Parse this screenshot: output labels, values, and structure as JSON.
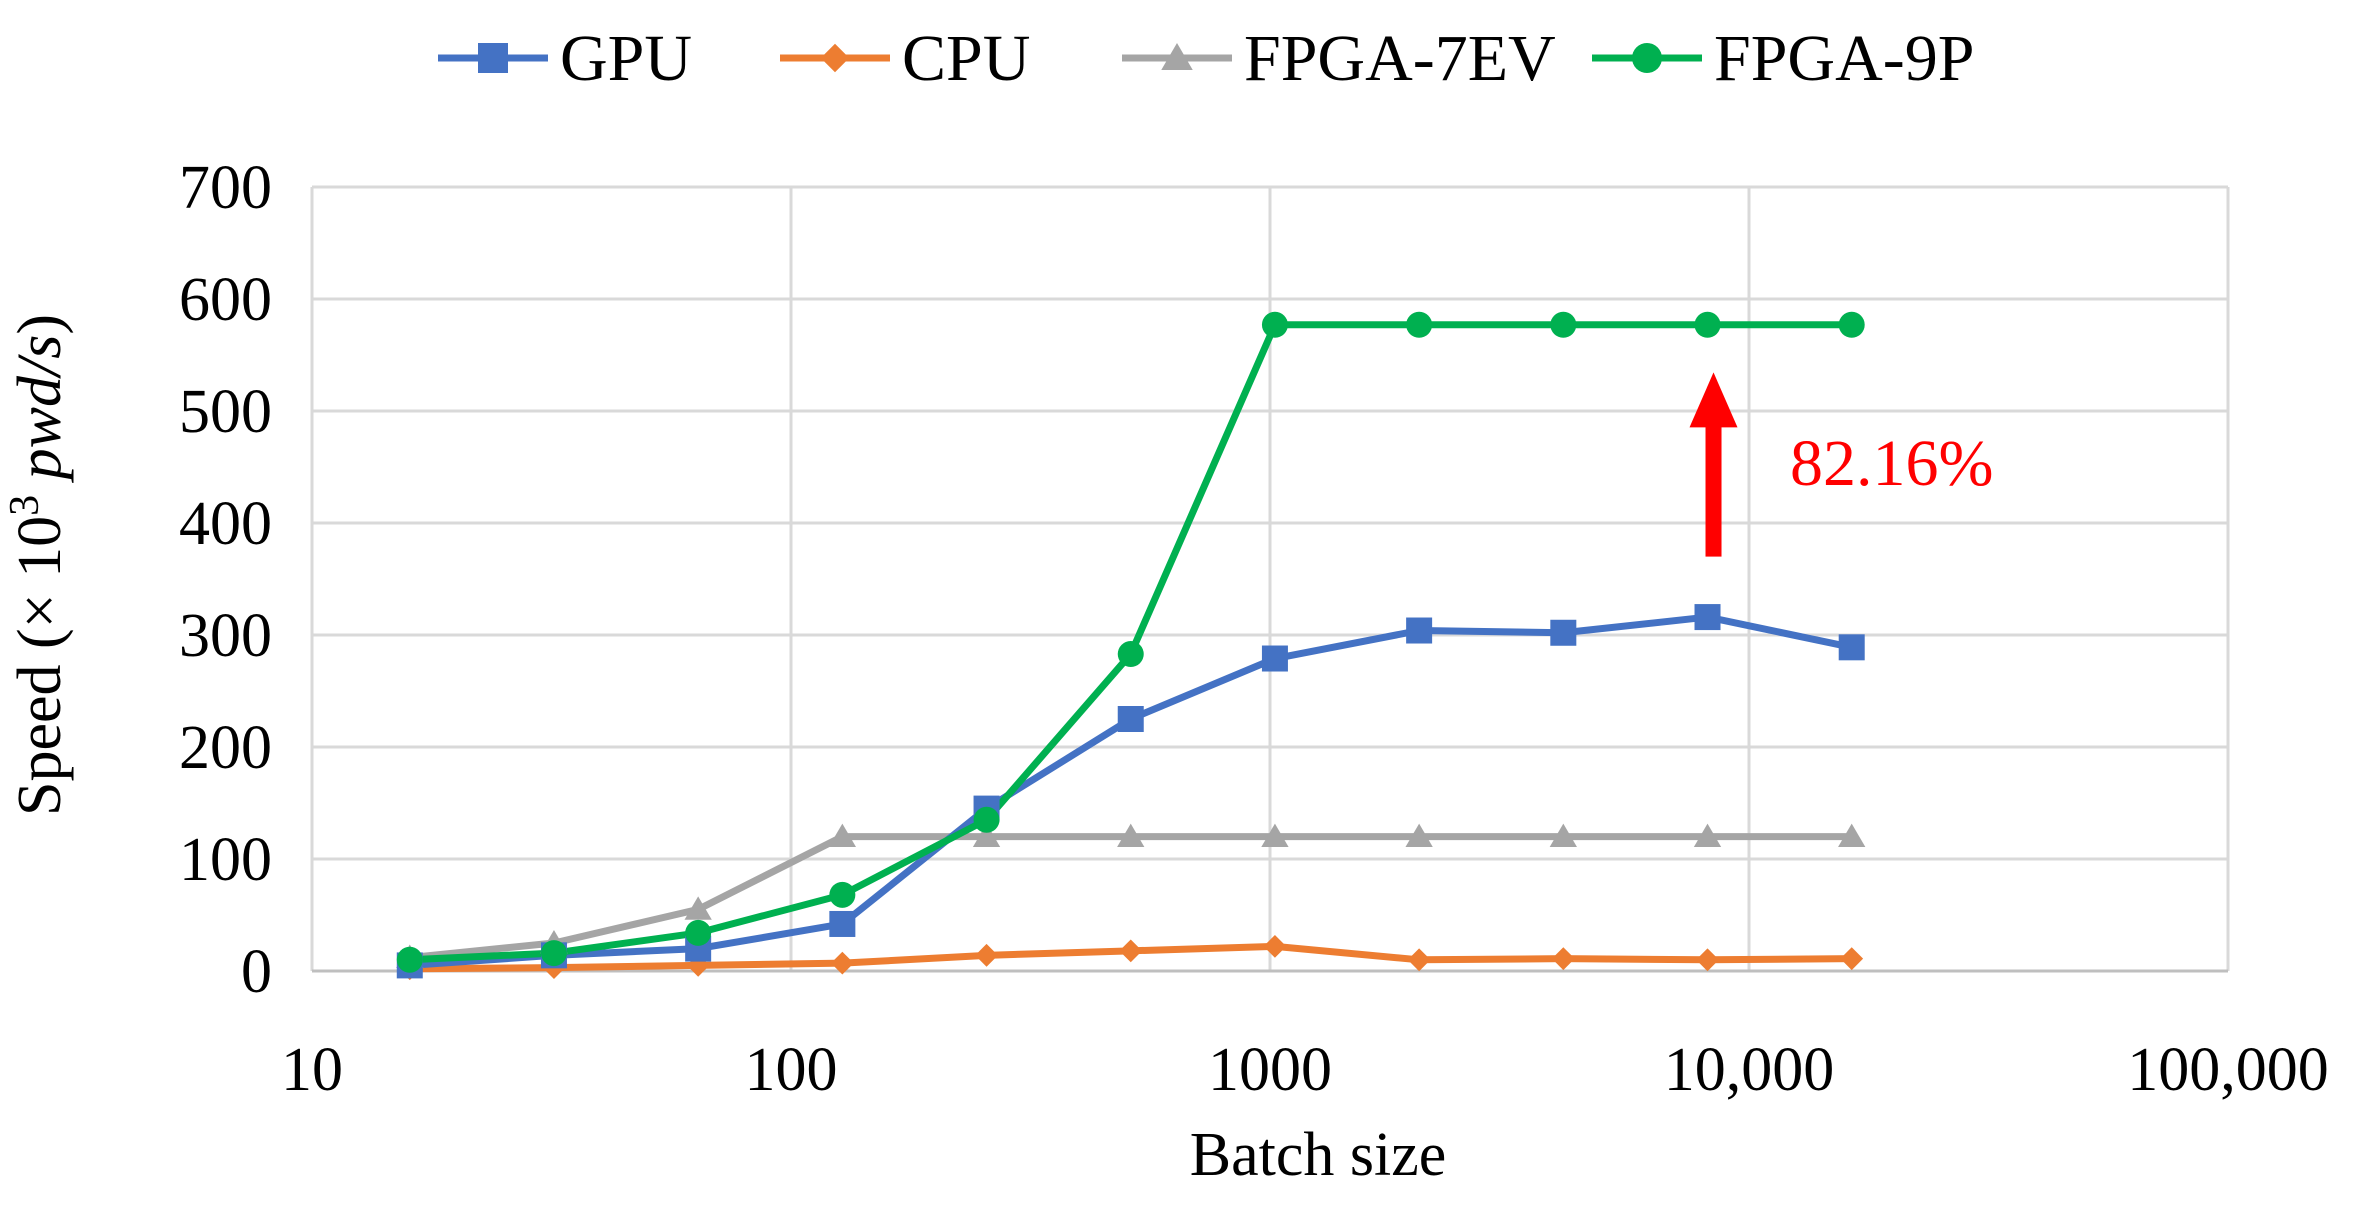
{
  "chart_data": {
    "type": "line",
    "title": "",
    "xlabel": "Batch size",
    "ylabel_prefix": "Speed (× 10",
    "ylabel_sup": "3",
    "ylabel_italic": " pwd/s",
    "ylabel_suffix": ")",
    "x_scale": "log10",
    "xlim": [
      10,
      100000
    ],
    "ylim": [
      0,
      700
    ],
    "x_ticks": [
      {
        "value": 10,
        "label": "10"
      },
      {
        "value": 100,
        "label": "100"
      },
      {
        "value": 1000,
        "label": "1000"
      },
      {
        "value": 10000,
        "label": "10,000"
      },
      {
        "value": 100000,
        "label": "100,000"
      }
    ],
    "y_ticks": [
      {
        "value": 0,
        "label": "0"
      },
      {
        "value": 100,
        "label": "100"
      },
      {
        "value": 200,
        "label": "200"
      },
      {
        "value": 300,
        "label": "300"
      },
      {
        "value": 400,
        "label": "400"
      },
      {
        "value": 500,
        "label": "500"
      },
      {
        "value": 600,
        "label": "600"
      },
      {
        "value": 700,
        "label": "700"
      }
    ],
    "grid": true,
    "legend_position": "top",
    "x": [
      16,
      32,
      64,
      128,
      256,
      512,
      1024,
      2048,
      4096,
      8192,
      16384
    ],
    "series": [
      {
        "name": "GPU",
        "color": "#4472C4",
        "marker": "square",
        "values": [
          5,
          14,
          20,
          42,
          145,
          225,
          279,
          304,
          302,
          316,
          289
        ]
      },
      {
        "name": "CPU",
        "color": "#ED7D31",
        "marker": "diamond",
        "values": [
          2,
          3,
          5,
          7,
          14,
          18,
          22,
          10,
          11,
          10,
          11
        ]
      },
      {
        "name": "FPGA-7EV",
        "color": "#A5A5A5",
        "marker": "triangle",
        "values": [
          12,
          25,
          55,
          120,
          120,
          120,
          120,
          120,
          120,
          120,
          120
        ]
      },
      {
        "name": "FPGA-9P",
        "color": "#00B050",
        "marker": "circle",
        "values": [
          10,
          16,
          34,
          68,
          135,
          283,
          577,
          577,
          577,
          577,
          577
        ]
      }
    ],
    "annotation": {
      "text": "82.16%",
      "color": "#FF0000",
      "arrow_x": 8192,
      "arrow_from": 370,
      "arrow_to": 530
    }
  }
}
